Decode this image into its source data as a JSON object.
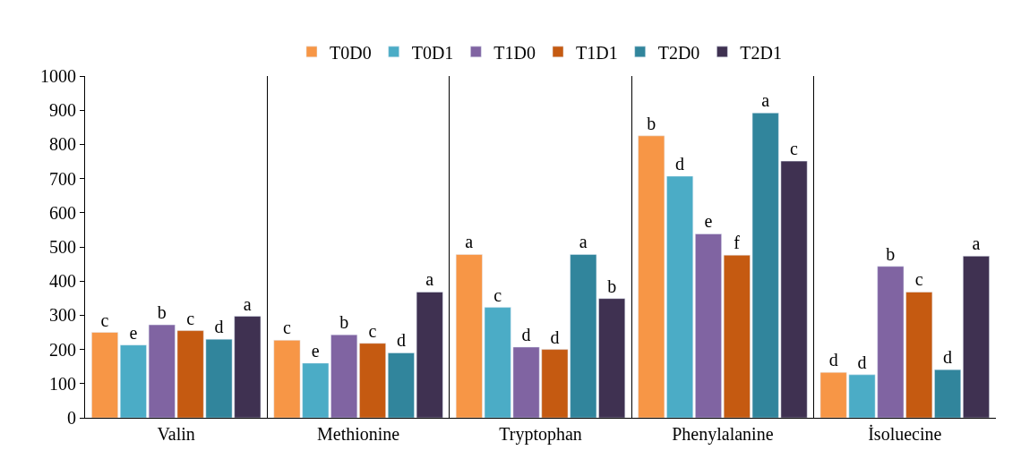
{
  "chart_data": {
    "type": "bar",
    "categories": [
      "Valin",
      "Methionine",
      "Tryptophan",
      "Phenylalanine",
      "İsoluecine"
    ],
    "series": [
      {
        "name": "T0D0",
        "color": "#f79646",
        "values": [
          250,
          227,
          478,
          825,
          133
        ],
        "value_labels": [
          "c",
          "c",
          "a",
          "b",
          "d"
        ]
      },
      {
        "name": "T0D1",
        "color": "#4bacc6",
        "values": [
          213,
          160,
          323,
          707,
          126
        ],
        "value_labels": [
          "e",
          "e",
          "c",
          "d",
          "d"
        ]
      },
      {
        "name": "T1D0",
        "color": "#8064a2",
        "values": [
          272,
          243,
          207,
          538,
          443
        ],
        "value_labels": [
          "b",
          "b",
          "d",
          "e",
          "b"
        ]
      },
      {
        "name": "T1D1",
        "color": "#c55a11",
        "values": [
          255,
          218,
          200,
          476,
          368
        ],
        "value_labels": [
          "c",
          "c",
          "d",
          "f",
          "c"
        ]
      },
      {
        "name": "T2D0",
        "color": "#31859c",
        "values": [
          230,
          190,
          478,
          892,
          141
        ],
        "value_labels": [
          "d",
          "d",
          "a",
          "a",
          "d"
        ]
      },
      {
        "name": "T2D1",
        "color": "#3f3151",
        "values": [
          297,
          368,
          349,
          751,
          473
        ],
        "value_labels": [
          "a",
          "a",
          "b",
          "c",
          "a"
        ]
      }
    ],
    "ylim": [
      0,
      1000
    ],
    "yticks": [
      0,
      100,
      200,
      300,
      400,
      500,
      600,
      700,
      800,
      900,
      1000
    ],
    "grid": "x",
    "legend": "top"
  }
}
